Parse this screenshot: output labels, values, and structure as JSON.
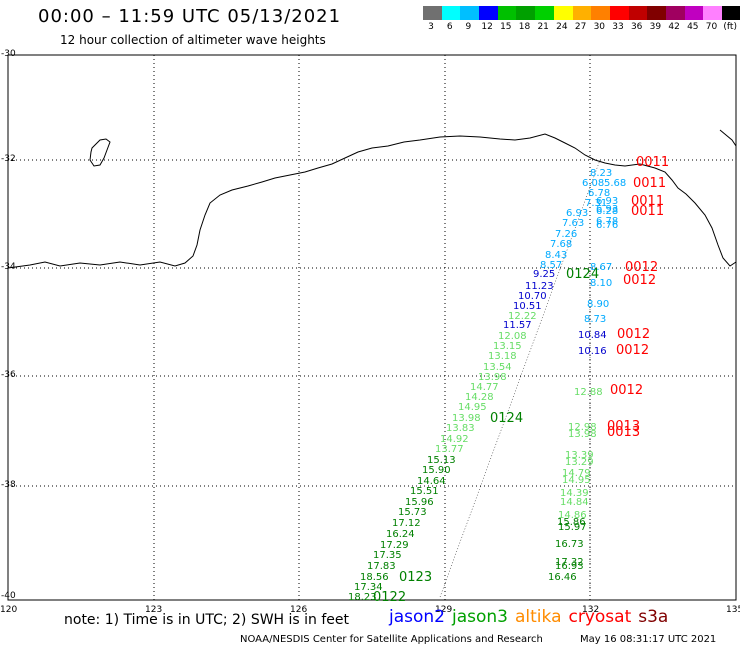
{
  "title": "00:00 – 11:59 UTC 05/13/2021",
  "subtitle": "12 hour collection of altimeter wave heights",
  "colorbar": {
    "colors": [
      "#707070",
      "#00ffff",
      "#00bfff",
      "#0000ff",
      "#00c000",
      "#00a000",
      "#00d000",
      "#ffff00",
      "#ffb000",
      "#ff8000",
      "#ff0000",
      "#c00000",
      "#800000",
      "#a00060",
      "#c000c0",
      "#ff80ff",
      "#000000"
    ],
    "labels": [
      "3",
      "6",
      "9",
      "12",
      "15",
      "18",
      "21",
      "24",
      "27",
      "30",
      "33",
      "36",
      "39",
      "42",
      "45",
      "70",
      "(ft)"
    ]
  },
  "y_ticks": [
    "-30",
    "-32",
    "-34",
    "-36",
    "-38",
    "-40"
  ],
  "x_ticks": [
    "120",
    "123",
    "126",
    "129",
    "132",
    "135"
  ],
  "note": "note: 1) Time is in UTC; 2) SWH is in feet",
  "legend": [
    {
      "name": "jason2",
      "color": "#0000ff"
    },
    {
      "name": "jason3",
      "color": "#00a000"
    },
    {
      "name": "altika",
      "color": "#ff8c00"
    },
    {
      "name": "cryosat",
      "color": "#ff0000"
    },
    {
      "name": "s3a",
      "color": "#800000"
    }
  ],
  "footer": "NOAA/NESDIS Center for Satellite Applications and Research",
  "footer_time": "May 16 08:31:17 UTC 2021",
  "track_labels": [
    {
      "text": "0011",
      "color": "#ff0000"
    },
    {
      "text": "0011",
      "color": "#ff0000"
    },
    {
      "text": "0011",
      "color": "#ff0000"
    },
    {
      "text": "0011",
      "color": "#ff0000"
    },
    {
      "text": "0012",
      "color": "#ff0000"
    },
    {
      "text": "0012",
      "color": "#ff0000"
    },
    {
      "text": "0012",
      "color": "#ff0000"
    },
    {
      "text": "0012",
      "color": "#ff0000"
    },
    {
      "text": "0012",
      "color": "#ff0000"
    },
    {
      "text": "0013",
      "color": "#ff0000"
    },
    {
      "text": "0013",
      "color": "#ff0000"
    },
    {
      "text": "0124",
      "color": "#008000"
    },
    {
      "text": "0124",
      "color": "#008000"
    },
    {
      "text": "0123",
      "color": "#008000"
    },
    {
      "text": "0122",
      "color": "#008000"
    }
  ],
  "swh_values": [
    {
      "text": "8.23",
      "color": "#00aaff"
    },
    {
      "text": "6.08",
      "color": "#00aaff"
    },
    {
      "text": "5.68",
      "color": "#00aaff"
    },
    {
      "text": "6.78",
      "color": "#00aaff"
    },
    {
      "text": "7.31",
      "color": "#00aaff"
    },
    {
      "text": "6.93",
      "color": "#00aaff"
    },
    {
      "text": "6.93",
      "color": "#00aaff"
    },
    {
      "text": "7.63",
      "color": "#00aaff"
    },
    {
      "text": "7.26",
      "color": "#00aaff"
    },
    {
      "text": "7.68",
      "color": "#00aaff"
    },
    {
      "text": "8.43",
      "color": "#00aaff"
    },
    {
      "text": "8.57",
      "color": "#00aaff"
    },
    {
      "text": "9.25",
      "color": "#0000cc"
    },
    {
      "text": "11.23",
      "color": "#0000cc"
    },
    {
      "text": "10.70",
      "color": "#0000cc"
    },
    {
      "text": "10.51",
      "color": "#0000cc"
    },
    {
      "text": "12.22",
      "color": "#66dd66"
    },
    {
      "text": "11.57",
      "color": "#0000cc"
    },
    {
      "text": "12.08",
      "color": "#66dd66"
    },
    {
      "text": "13.15",
      "color": "#66dd66"
    },
    {
      "text": "13.18",
      "color": "#66dd66"
    },
    {
      "text": "13.54",
      "color": "#66dd66"
    },
    {
      "text": "13.98",
      "color": "#66dd66"
    },
    {
      "text": "14.77",
      "color": "#66dd66"
    },
    {
      "text": "14.28",
      "color": "#66dd66"
    },
    {
      "text": "14.95",
      "color": "#66dd66"
    },
    {
      "text": "13.98",
      "color": "#66dd66"
    },
    {
      "text": "13.83",
      "color": "#66dd66"
    },
    {
      "text": "14.92",
      "color": "#66dd66"
    },
    {
      "text": "13.77",
      "color": "#66dd66"
    },
    {
      "text": "15.13",
      "color": "#008000"
    },
    {
      "text": "15.90",
      "color": "#008000"
    },
    {
      "text": "14.64",
      "color": "#008000"
    },
    {
      "text": "15.51",
      "color": "#008000"
    },
    {
      "text": "15.96",
      "color": "#008000"
    },
    {
      "text": "15.73",
      "color": "#008000"
    },
    {
      "text": "17.12",
      "color": "#008000"
    },
    {
      "text": "16.24",
      "color": "#008000"
    },
    {
      "text": "17.29",
      "color": "#008000"
    },
    {
      "text": "17.35",
      "color": "#008000"
    },
    {
      "text": "17.83",
      "color": "#008000"
    },
    {
      "text": "18.56",
      "color": "#008000"
    },
    {
      "text": "17.34",
      "color": "#008000"
    },
    {
      "text": "18.23",
      "color": "#008000"
    },
    {
      "text": "8.67",
      "color": "#00aaff"
    },
    {
      "text": "8.90",
      "color": "#00aaff"
    },
    {
      "text": "8.73",
      "color": "#00aaff"
    },
    {
      "text": "10.84",
      "color": "#0000cc"
    },
    {
      "text": "10.16",
      "color": "#0000cc"
    },
    {
      "text": "12.88",
      "color": "#66dd66"
    },
    {
      "text": "12.98",
      "color": "#66dd66"
    },
    {
      "text": "13.98",
      "color": "#66dd66"
    },
    {
      "text": "13.39",
      "color": "#66dd66"
    },
    {
      "text": "13.29",
      "color": "#66dd66"
    },
    {
      "text": "14.79",
      "color": "#66dd66"
    },
    {
      "text": "14.95",
      "color": "#66dd66"
    },
    {
      "text": "14.39",
      "color": "#66dd66"
    },
    {
      "text": "14.84",
      "color": "#66dd66"
    },
    {
      "text": "14.86",
      "color": "#66dd66"
    },
    {
      "text": "15.86",
      "color": "#008000"
    },
    {
      "text": "15.97",
      "color": "#008000"
    },
    {
      "text": "16.73",
      "color": "#008000"
    },
    {
      "text": "17.32",
      "color": "#008000"
    },
    {
      "text": "16.93",
      "color": "#008000"
    },
    {
      "text": "16.46",
      "color": "#008000"
    },
    {
      "text": "6.28",
      "color": "#00aaff"
    },
    {
      "text": "6.78",
      "color": "#00aaff"
    },
    {
      "text": "6.93",
      "color": "#00aaff"
    },
    {
      "text": "6.76",
      "color": "#00aaff"
    },
    {
      "text": "8.10",
      "color": "#00aaff"
    }
  ]
}
